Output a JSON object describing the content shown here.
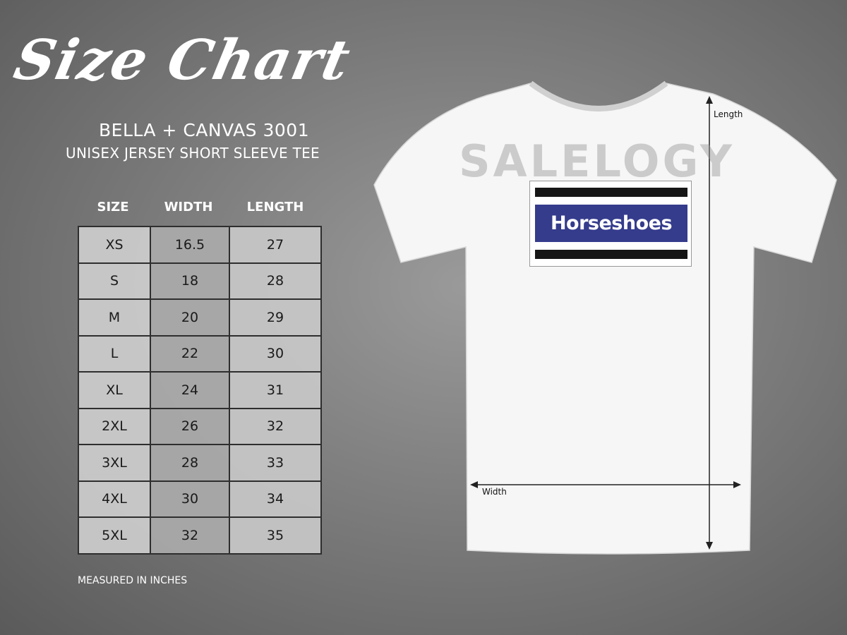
{
  "title": "Size Chart",
  "brand": "BELLA + CANVAS 3001",
  "subtitle": "UNISEX JERSEY SHORT SLEEVE TEE",
  "table": {
    "headers": [
      "SIZE",
      "WIDTH",
      "LENGTH"
    ],
    "rows": [
      [
        "XS",
        "16.5",
        "27"
      ],
      [
        "S",
        "18",
        "28"
      ],
      [
        "M",
        "20",
        "29"
      ],
      [
        "L",
        "22",
        "30"
      ],
      [
        "XL",
        "24",
        "31"
      ],
      [
        "2XL",
        "26",
        "32"
      ],
      [
        "3XL",
        "28",
        "33"
      ],
      [
        "4XL",
        "30",
        "34"
      ],
      [
        "5XL",
        "32",
        "35"
      ]
    ]
  },
  "note": "MEASURED IN INCHES",
  "shirt": {
    "watermark": "SALELOGY",
    "design_text": "Horseshoes",
    "design_color": "#353c8c",
    "length_label": "Length",
    "width_label": "Width"
  }
}
